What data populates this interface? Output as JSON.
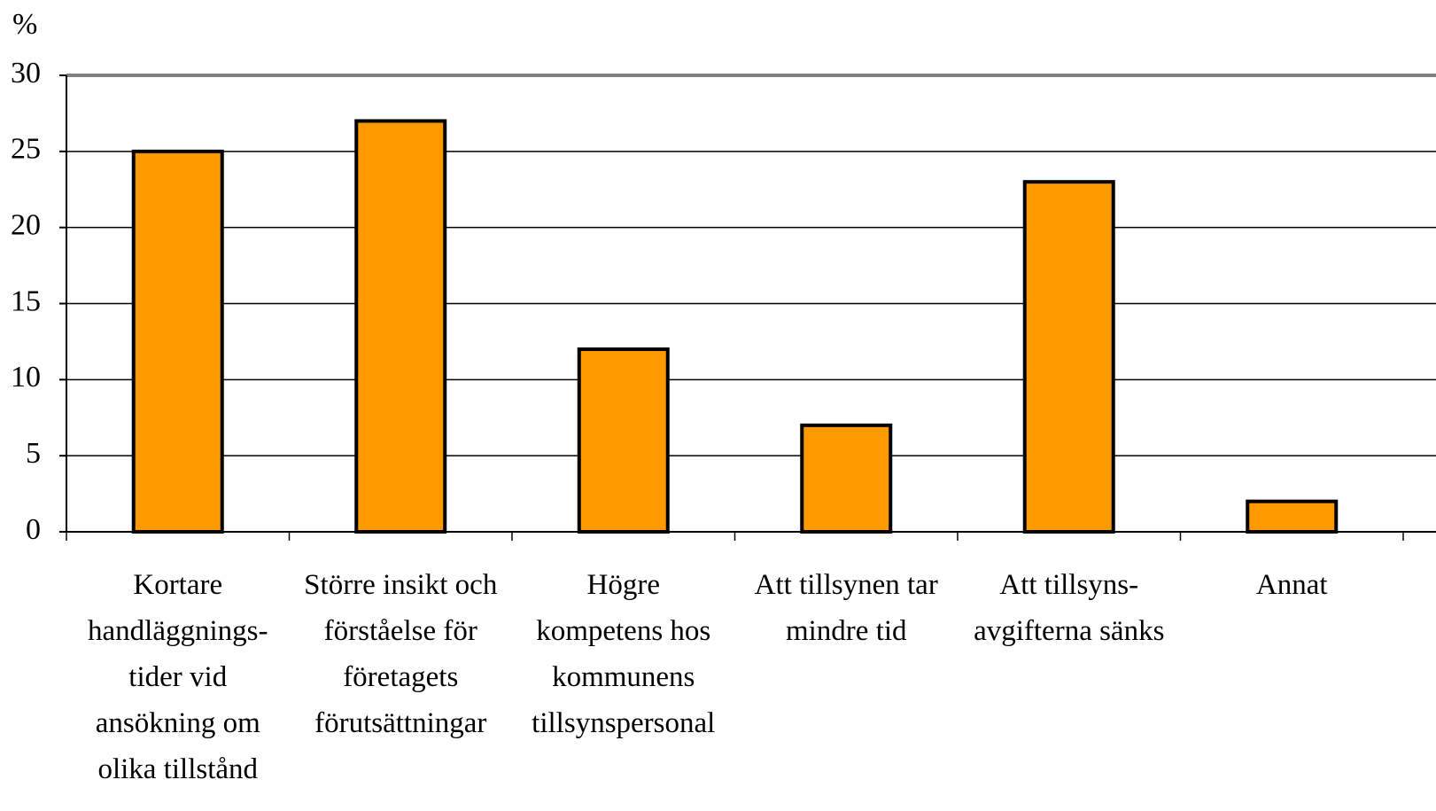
{
  "chart_data": {
    "type": "bar",
    "y_label": "%",
    "categories": [
      "Kortare\nhandläggnings-\ntider vid\nansökning om\nolika tillstånd",
      "Större insikt och\nförståelse för\nföretagets\nförutsättningar",
      "Högre\nkompetens hos\nkommunens\ntillsynspersonal",
      "Att tillsynen tar\nmindre tid",
      "Att tillsyns-\navgifterna sänks",
      "Annat"
    ],
    "values": [
      25,
      27,
      12,
      7,
      23,
      2
    ],
    "color": "#ff9900",
    "ylim": [
      0,
      30
    ],
    "yticks": [
      0,
      5,
      10,
      15,
      20,
      25,
      30
    ],
    "grid": true
  }
}
